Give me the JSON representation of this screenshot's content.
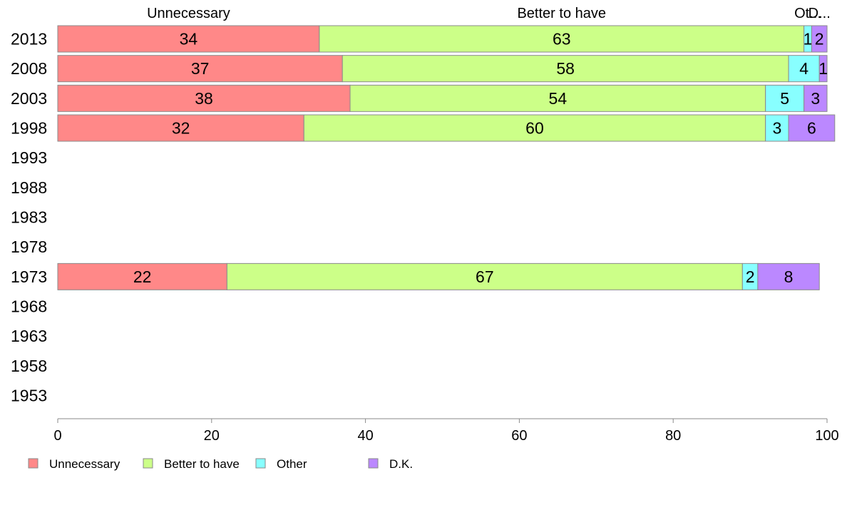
{
  "chart_data": {
    "type": "bar",
    "orientation": "horizontal",
    "stacked": true,
    "categories": [
      "2013",
      "2008",
      "2003",
      "1998",
      "1993",
      "1988",
      "1983",
      "1978",
      "1973",
      "1968",
      "1963",
      "1958",
      "1953"
    ],
    "series": [
      {
        "name": "Unnecessary",
        "color": "#ff8888",
        "values": [
          34,
          37,
          38,
          32,
          null,
          null,
          null,
          null,
          22,
          null,
          null,
          null,
          null
        ]
      },
      {
        "name": "Better to have",
        "color": "#ccff88",
        "values": [
          63,
          58,
          54,
          60,
          null,
          null,
          null,
          null,
          67,
          null,
          null,
          null,
          null
        ]
      },
      {
        "name": "Other",
        "color": "#88ffff",
        "values": [
          1,
          4,
          5,
          3,
          null,
          null,
          null,
          null,
          2,
          null,
          null,
          null,
          null
        ]
      },
      {
        "name": "D.K.",
        "color": "#bb88ff",
        "values": [
          2,
          1,
          3,
          6,
          null,
          null,
          null,
          null,
          8,
          null,
          null,
          null,
          null
        ]
      }
    ],
    "top_labels": [
      "Unnecessary",
      "Better to have",
      "Ot...",
      "D..."
    ],
    "xlim": [
      0,
      100
    ],
    "xticks": [
      "0",
      "20",
      "40",
      "60",
      "80",
      "100"
    ],
    "legend": {
      "position": "bottom-left",
      "entries": [
        "Unnecessary",
        "Better to have",
        "Other",
        "D.K."
      ]
    },
    "grid": false
  }
}
